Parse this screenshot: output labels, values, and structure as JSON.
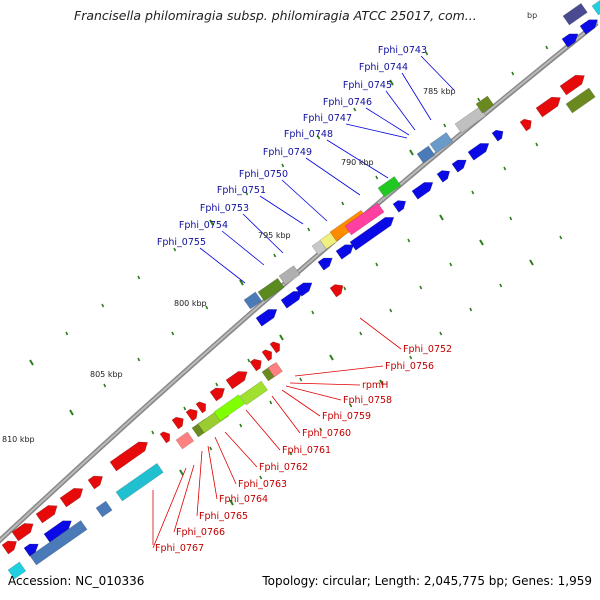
{
  "header": {
    "title": "Francisella philomiragia subsp. philomiragia ATCC 25017, com...",
    "truncated_unit": "bp"
  },
  "footer": {
    "accession": "Accession: NC_010336",
    "summary": "Topology: circular; Length: 2,045,775 bp; Genes: 1,959"
  },
  "axis_ticks": [
    "785 kbp",
    "790 kbp",
    "795 kbp",
    "800 kbp",
    "805 kbp",
    "810 kbp"
  ],
  "forward_labels": [
    "Fphi_0743",
    "Fphi_0744",
    "Fphi_0745",
    "Fphi_0746",
    "Fphi_0747",
    "Fphi_0748",
    "Fphi_0749",
    "Fphi_0750",
    "Fphi_0751",
    "Fphi_0753",
    "Fphi_0754",
    "Fphi_0755"
  ],
  "reverse_labels": [
    "Fphi_0752",
    "Fphi_0756",
    "rpmH",
    "Fphi_0758",
    "Fphi_0759",
    "Fphi_0760",
    "Fphi_0761",
    "Fphi_0762",
    "Fphi_0763",
    "Fphi_0764",
    "Fphi_0765",
    "Fphi_0766",
    "Fphi_0767"
  ],
  "colors": {
    "forward_label": "#1010a0",
    "reverse_label": "#c00000",
    "forward_gene": "#0a0ae6",
    "reverse_gene": "#e60a0a",
    "tick": "#2e7d1e",
    "backbone": "#808080"
  }
}
